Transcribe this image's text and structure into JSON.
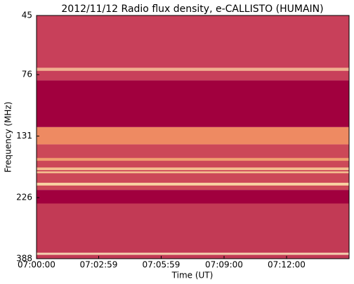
{
  "chart_data": {
    "type": "spectrogram",
    "title": "2012/11/12  Radio flux density, e-CALLISTO (HUMAIN)",
    "xlabel": "Time (UT)",
    "ylabel": "Frequency (MHz)",
    "xlim": [
      "07:00:00",
      "07:15:00"
    ],
    "xticks": [
      "07:00:00",
      "07:02:59",
      "07:05:59",
      "07:09:00",
      "07:12:00"
    ],
    "ylim": [
      45,
      388
    ],
    "yscale": "log",
    "yinverted": true,
    "yticks": [
      45,
      76,
      131,
      226,
      388
    ],
    "bands": [
      {
        "from": 45,
        "to": 80,
        "color": "#c8405a"
      },
      {
        "from": 71.5,
        "to": 73.5,
        "color": "#f0b090"
      },
      {
        "from": 80,
        "to": 121,
        "color": "#a1003e"
      },
      {
        "from": 121,
        "to": 141,
        "color": "#ee8a62"
      },
      {
        "from": 141,
        "to": 211,
        "color": "#cc4858"
      },
      {
        "from": 159,
        "to": 163,
        "color": "#f0a070"
      },
      {
        "from": 173,
        "to": 177,
        "color": "#f5c090"
      },
      {
        "from": 179,
        "to": 182,
        "color": "#f5c090"
      },
      {
        "from": 198,
        "to": 203,
        "color": "#f7d0a0"
      },
      {
        "from": 211,
        "to": 238,
        "color": "#a1003e"
      },
      {
        "from": 238,
        "to": 388,
        "color": "#c23a55"
      },
      {
        "from": 368,
        "to": 375,
        "color": "#f5d0b0"
      }
    ]
  }
}
